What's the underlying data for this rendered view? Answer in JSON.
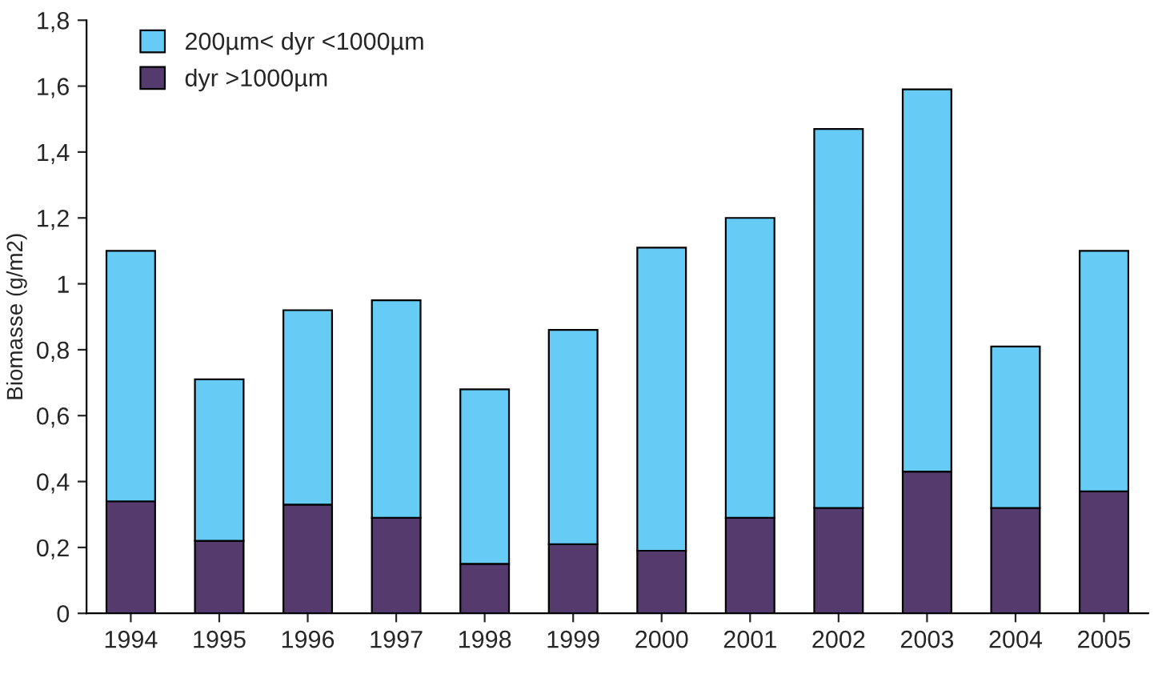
{
  "chart_data": {
    "type": "bar",
    "stacked": true,
    "ylabel": "Biomasse (g/m2)",
    "categories": [
      "1994",
      "1995",
      "1996",
      "1997",
      "1998",
      "1999",
      "2000",
      "2001",
      "2002",
      "2003",
      "2004",
      "2005"
    ],
    "series": [
      {
        "name": "dyr >1000µm",
        "color": "#553a6e",
        "values": [
          0.34,
          0.22,
          0.33,
          0.29,
          0.15,
          0.21,
          0.19,
          0.29,
          0.32,
          0.43,
          0.32,
          0.37
        ]
      },
      {
        "name": "200µm< dyr <1000µm",
        "color": "#66ccf5",
        "values": [
          0.76,
          0.49,
          0.59,
          0.66,
          0.53,
          0.65,
          0.92,
          0.91,
          1.15,
          1.16,
          0.49,
          0.73
        ]
      }
    ],
    "ylim": [
      0,
      1.8
    ],
    "yticks": [
      0,
      {
        "value": 0.2,
        "label": "0,2"
      },
      {
        "value": 0.4,
        "label": "0,4"
      },
      {
        "value": 0.6,
        "label": "0,6"
      },
      {
        "value": 0.8,
        "label": "0,8"
      },
      1,
      {
        "value": 1.2,
        "label": "1,2"
      },
      {
        "value": 1.4,
        "label": "1,4"
      },
      {
        "value": 1.6,
        "label": "1,6"
      },
      {
        "value": 1.8,
        "label": "1,8"
      }
    ],
    "grid": false,
    "legend": "top left"
  }
}
